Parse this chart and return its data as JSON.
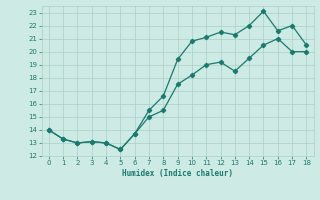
{
  "xlabel": "Humidex (Indice chaleur)",
  "x": [
    0,
    1,
    2,
    3,
    4,
    5,
    6,
    7,
    8,
    9,
    10,
    11,
    12,
    13,
    14,
    15,
    16,
    17,
    18
  ],
  "y_upper": [
    14.0,
    13.3,
    13.0,
    13.1,
    13.0,
    12.5,
    13.7,
    15.5,
    16.6,
    19.4,
    20.8,
    21.1,
    21.5,
    21.3,
    22.0,
    23.1,
    21.6,
    22.0,
    20.5
  ],
  "y_lower": [
    14.0,
    13.3,
    13.0,
    13.1,
    13.0,
    12.5,
    13.7,
    15.0,
    15.5,
    17.5,
    18.2,
    19.0,
    19.2,
    18.5,
    19.5,
    20.5,
    21.0,
    20.0,
    20.0
  ],
  "line_color": "#1a7a6e",
  "bg_color": "#cdeae4",
  "grid_color": "#aacfc8",
  "xlim": [
    -0.5,
    18.5
  ],
  "ylim": [
    12,
    23.5
  ],
  "yticks": [
    12,
    13,
    14,
    15,
    16,
    17,
    18,
    19,
    20,
    21,
    22,
    23
  ],
  "xticks": [
    0,
    1,
    2,
    3,
    4,
    5,
    6,
    7,
    8,
    9,
    10,
    11,
    12,
    13,
    14,
    15,
    16,
    17,
    18
  ]
}
